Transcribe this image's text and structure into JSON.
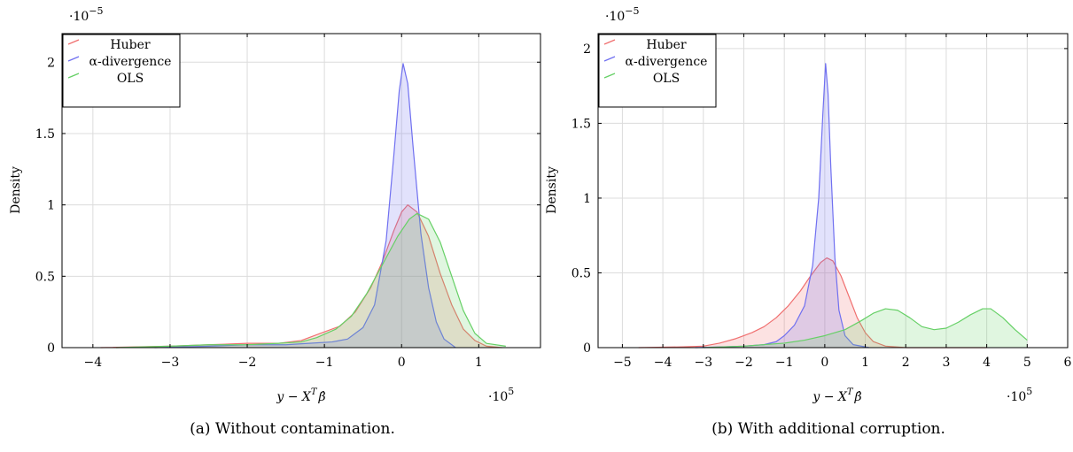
{
  "chart_data": [
    {
      "type": "area",
      "caption": "(a) Without contamination.",
      "xlabel": "y − X",
      "xlabel_sup": "T",
      "xlabel_beta": "β̂",
      "ylabel": "Density",
      "x_multiplier_label": "·10",
      "x_multiplier_exp": "5",
      "y_multiplier_label": "·10",
      "y_multiplier_exp": "−5",
      "xlim": [
        -4.4,
        1.8
      ],
      "ylim": [
        0,
        2.2
      ],
      "xticks": [
        -4,
        -3,
        -2,
        -1,
        0,
        1
      ],
      "xtick_labels": [
        "−4",
        "−3",
        "−2",
        "−1",
        "0",
        "1"
      ],
      "yticks": [
        0,
        0.5,
        1,
        1.5,
        2
      ],
      "ytick_labels": [
        "0",
        "0.5",
        "1",
        "1.5",
        "2"
      ],
      "grid": true,
      "legend_position": "top-left",
      "series": [
        {
          "name": "Huber",
          "color": "#f07070",
          "points": [
            [
              -3.9,
              0
            ],
            [
              -3,
              0.01
            ],
            [
              -2.5,
              0.02
            ],
            [
              -2,
              0.03
            ],
            [
              -1.6,
              0.03
            ],
            [
              -1.3,
              0.05
            ],
            [
              -1.05,
              0.1
            ],
            [
              -0.8,
              0.15
            ],
            [
              -0.6,
              0.25
            ],
            [
              -0.4,
              0.42
            ],
            [
              -0.25,
              0.6
            ],
            [
              -0.1,
              0.82
            ],
            [
              0,
              0.95
            ],
            [
              0.08,
              1.0
            ],
            [
              0.2,
              0.95
            ],
            [
              0.35,
              0.78
            ],
            [
              0.5,
              0.52
            ],
            [
              0.65,
              0.3
            ],
            [
              0.8,
              0.13
            ],
            [
              0.95,
              0.05
            ],
            [
              1.1,
              0.01
            ],
            [
              1.3,
              0
            ]
          ]
        },
        {
          "name": "α-divergence",
          "color": "#7070f0",
          "points": [
            [
              -3.2,
              0
            ],
            [
              -2.5,
              0.01
            ],
            [
              -2,
              0.02
            ],
            [
              -1.5,
              0.02
            ],
            [
              -1.2,
              0.03
            ],
            [
              -0.9,
              0.04
            ],
            [
              -0.7,
              0.06
            ],
            [
              -0.5,
              0.14
            ],
            [
              -0.35,
              0.3
            ],
            [
              -0.2,
              0.75
            ],
            [
              -0.1,
              1.35
            ],
            [
              -0.03,
              1.8
            ],
            [
              0.02,
              1.99
            ],
            [
              0.08,
              1.85
            ],
            [
              0.15,
              1.4
            ],
            [
              0.25,
              0.8
            ],
            [
              0.35,
              0.42
            ],
            [
              0.45,
              0.18
            ],
            [
              0.55,
              0.06
            ],
            [
              0.7,
              0
            ]
          ]
        },
        {
          "name": "OLS",
          "color": "#66d066",
          "points": [
            [
              -3.7,
              0
            ],
            [
              -3,
              0.01
            ],
            [
              -2.5,
              0.02
            ],
            [
              -2,
              0.02
            ],
            [
              -1.6,
              0.03
            ],
            [
              -1.3,
              0.04
            ],
            [
              -1.1,
              0.07
            ],
            [
              -0.85,
              0.13
            ],
            [
              -0.65,
              0.22
            ],
            [
              -0.45,
              0.38
            ],
            [
              -0.25,
              0.58
            ],
            [
              -0.05,
              0.78
            ],
            [
              0.1,
              0.9
            ],
            [
              0.2,
              0.94
            ],
            [
              0.35,
              0.9
            ],
            [
              0.5,
              0.74
            ],
            [
              0.65,
              0.5
            ],
            [
              0.8,
              0.26
            ],
            [
              0.95,
              0.1
            ],
            [
              1.1,
              0.03
            ],
            [
              1.35,
              0.01
            ]
          ]
        }
      ]
    },
    {
      "type": "area",
      "caption": "(b) With additional corruption.",
      "xlabel": "y − X",
      "xlabel_sup": "T",
      "xlabel_beta": "β̂",
      "ylabel": "Density",
      "x_multiplier_label": "·10",
      "x_multiplier_exp": "5",
      "y_multiplier_label": "·10",
      "y_multiplier_exp": "−5",
      "xlim": [
        -5.6,
        6
      ],
      "ylim": [
        0,
        2.1
      ],
      "xticks": [
        -5,
        -4,
        -3,
        -2,
        -1,
        0,
        1,
        2,
        3,
        4,
        5,
        6
      ],
      "xtick_labels": [
        "−5",
        "−4",
        "−3",
        "−2",
        "−1",
        "0",
        "1",
        "2",
        "3",
        "4",
        "5",
        "6"
      ],
      "yticks": [
        0,
        0.5,
        1,
        1.5,
        2
      ],
      "ytick_labels": [
        "0",
        "0.5",
        "1",
        "1.5",
        "2"
      ],
      "grid": true,
      "legend_position": "top-left",
      "series": [
        {
          "name": "Huber",
          "color": "#f07070",
          "points": [
            [
              -4.6,
              0
            ],
            [
              -3.5,
              0.005
            ],
            [
              -3,
              0.01
            ],
            [
              -2.6,
              0.03
            ],
            [
              -2.2,
              0.06
            ],
            [
              -1.8,
              0.1
            ],
            [
              -1.5,
              0.14
            ],
            [
              -1.2,
              0.2
            ],
            [
              -0.9,
              0.28
            ],
            [
              -0.6,
              0.38
            ],
            [
              -0.35,
              0.48
            ],
            [
              -0.1,
              0.57
            ],
            [
              0.05,
              0.6
            ],
            [
              0.2,
              0.58
            ],
            [
              0.4,
              0.48
            ],
            [
              0.6,
              0.34
            ],
            [
              0.8,
              0.2
            ],
            [
              1.0,
              0.1
            ],
            [
              1.2,
              0.04
            ],
            [
              1.5,
              0.01
            ],
            [
              2,
              0
            ],
            [
              3,
              0
            ],
            [
              4,
              0
            ]
          ]
        },
        {
          "name": "α-divergence",
          "color": "#7070f0",
          "points": [
            [
              -3.2,
              0
            ],
            [
              -2.5,
              0.005
            ],
            [
              -2,
              0.01
            ],
            [
              -1.5,
              0.02
            ],
            [
              -1.2,
              0.04
            ],
            [
              -1,
              0.08
            ],
            [
              -0.75,
              0.15
            ],
            [
              -0.5,
              0.28
            ],
            [
              -0.3,
              0.55
            ],
            [
              -0.15,
              1.0
            ],
            [
              -0.05,
              1.55
            ],
            [
              0.02,
              1.9
            ],
            [
              0.08,
              1.7
            ],
            [
              0.15,
              1.2
            ],
            [
              0.25,
              0.6
            ],
            [
              0.35,
              0.25
            ],
            [
              0.5,
              0.08
            ],
            [
              0.7,
              0.02
            ],
            [
              1.1,
              0
            ]
          ]
        },
        {
          "name": "OLS",
          "color": "#66d066",
          "points": [
            [
              -3,
              0
            ],
            [
              -2,
              0.01
            ],
            [
              -1,
              0.03
            ],
            [
              -0.5,
              0.05
            ],
            [
              0,
              0.08
            ],
            [
              0.5,
              0.12
            ],
            [
              0.9,
              0.18
            ],
            [
              1.2,
              0.23
            ],
            [
              1.5,
              0.26
            ],
            [
              1.8,
              0.25
            ],
            [
              2.1,
              0.2
            ],
            [
              2.4,
              0.14
            ],
            [
              2.7,
              0.12
            ],
            [
              3.0,
              0.13
            ],
            [
              3.3,
              0.17
            ],
            [
              3.6,
              0.22
            ],
            [
              3.9,
              0.26
            ],
            [
              4.1,
              0.26
            ],
            [
              4.4,
              0.2
            ],
            [
              4.7,
              0.12
            ],
            [
              5.0,
              0.05
            ]
          ]
        }
      ]
    }
  ]
}
